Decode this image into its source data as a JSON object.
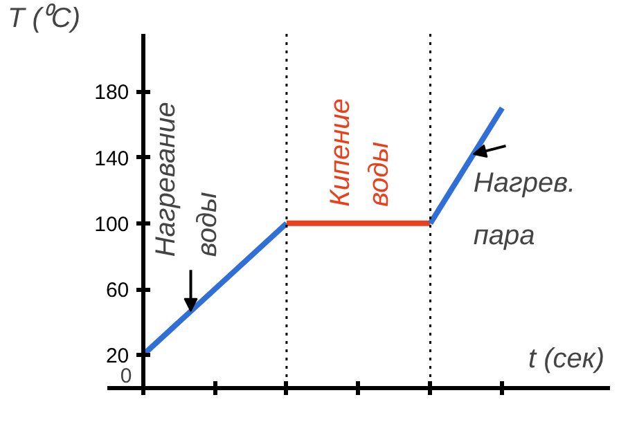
{
  "chart_data": {
    "type": "line",
    "xlabel": "t (сек)",
    "ylabel": "T (⁰C)",
    "categories": [
      null,
      null,
      null,
      null,
      null,
      null,
      null
    ],
    "ylim": [
      0,
      215
    ],
    "yticks": [
      20,
      60,
      100,
      140,
      180
    ],
    "series": [
      {
        "values": [
          20,
          60,
          100,
          null,
          null,
          null,
          null
        ],
        "color": "#2f6fd6"
      },
      {
        "values": [
          null,
          null,
          100,
          100,
          100,
          null,
          null
        ],
        "color": "#e8401c"
      },
      {
        "values": [
          null,
          null,
          null,
          null,
          100,
          170,
          null
        ],
        "color": "#2f6fd6"
      }
    ],
    "annotations": [
      "Нагревание воды",
      "Кипение воды",
      "Нагрев. пара",
      "0"
    ],
    "grid": false,
    "marker": "none",
    "line_style": "solid"
  }
}
